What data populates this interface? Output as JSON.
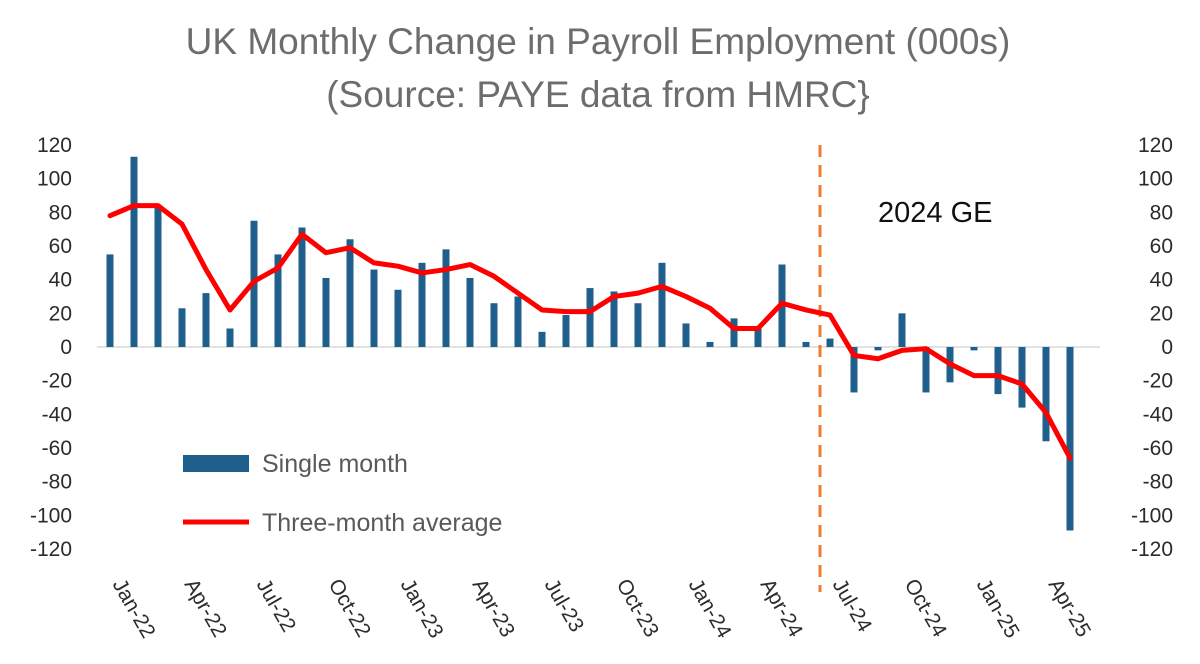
{
  "chart_data": {
    "type": "bar",
    "title_line1": "UK Monthly Change in Payroll Employment (000s)",
    "title_line2": "(Source: PAYE data from HMRC}",
    "x": [
      "Jan-22",
      "Feb-22",
      "Mar-22",
      "Apr-22",
      "May-22",
      "Jun-22",
      "Jul-22",
      "Aug-22",
      "Sep-22",
      "Oct-22",
      "Nov-22",
      "Dec-22",
      "Jan-23",
      "Feb-23",
      "Mar-23",
      "Apr-23",
      "May-23",
      "Jun-23",
      "Jul-23",
      "Aug-23",
      "Sep-23",
      "Oct-23",
      "Nov-23",
      "Dec-23",
      "Jan-24",
      "Feb-24",
      "Mar-24",
      "Apr-24",
      "May-24",
      "Jun-24",
      "Jul-24",
      "Aug-24",
      "Sep-24",
      "Oct-24",
      "Nov-24",
      "Dec-24",
      "Jan-25",
      "Feb-25",
      "Mar-25",
      "Apr-25",
      "May-25"
    ],
    "x_tick_labels": [
      "Jan-22",
      "Apr-22",
      "Jul-22",
      "Oct-22",
      "Jan-23",
      "Apr-23",
      "Jul-23",
      "Oct-23",
      "Jan-24",
      "Apr-24",
      "Jul-24",
      "Oct-24",
      "Jan-25",
      "Apr-25"
    ],
    "series": [
      {
        "name": "Single month",
        "type": "bar",
        "color": "#1f5f8b",
        "values": [
          55,
          113,
          83,
          23,
          32,
          11,
          75,
          55,
          71,
          41,
          64,
          46,
          34,
          50,
          58,
          41,
          26,
          30,
          9,
          19,
          35,
          33,
          26,
          50,
          14,
          3,
          17,
          12,
          49,
          3,
          5,
          -27,
          -2,
          20,
          -27,
          -21,
          -2,
          -28,
          -36,
          -56,
          -109
        ]
      },
      {
        "name": "Three-month average",
        "type": "line",
        "color": "#ff0000",
        "values": [
          78,
          84,
          84,
          73,
          46,
          22,
          39,
          47,
          67,
          56,
          59,
          50,
          48,
          44,
          46,
          49,
          42,
          32,
          22,
          21,
          21,
          30,
          32,
          36,
          30,
          23,
          11,
          11,
          26,
          22,
          19,
          -5,
          -7,
          -2,
          -1,
          -10,
          -17,
          -17,
          -22,
          -39,
          -66
        ]
      }
    ],
    "y_ticks": [
      "120",
      "100",
      "80",
      "60",
      "40",
      "20",
      "0",
      "-20",
      "-40",
      "-60",
      "-80",
      "-100",
      "-120"
    ],
    "ylim": [
      -120,
      120
    ],
    "vline": {
      "after_index": 29.5,
      "color": "#ed7d31",
      "style": "dashed"
    },
    "annotation": "2024 GE",
    "legend_position": "bottom-left",
    "grid": false
  }
}
